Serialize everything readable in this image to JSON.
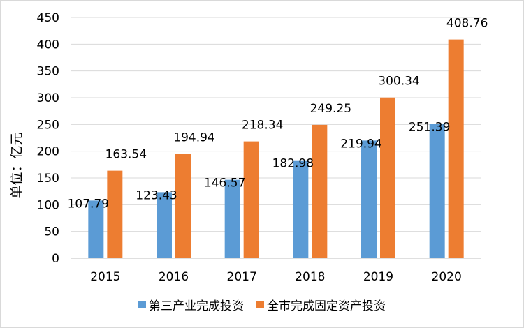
{
  "chart_data": {
    "type": "bar",
    "categories": [
      "2015",
      "2016",
      "2017",
      "2018",
      "2019",
      "2020"
    ],
    "series": [
      {
        "name": "第三产业完成投资",
        "values": [
          107.79,
          123.43,
          146.57,
          182.98,
          219.94,
          251.39
        ],
        "color": "#5B9BD5"
      },
      {
        "name": "全市完成固定资产投资",
        "values": [
          163.54,
          194.94,
          218.34,
          249.25,
          300.34,
          408.76
        ],
        "color": "#ED7D31"
      }
    ],
    "data_labels": [
      [
        "107.79",
        "123.43",
        "146.57",
        "182.98",
        "219.94",
        "251.39"
      ],
      [
        "163.54",
        "194.94",
        "218.34",
        "249.25",
        "300.34",
        "408.76"
      ]
    ],
    "ylabel": "单位：亿元",
    "ylim": [
      0,
      450
    ],
    "yticks": [
      0,
      50,
      100,
      150,
      200,
      250,
      300,
      350,
      400,
      450
    ],
    "grid": true,
    "legend_position": "bottom"
  }
}
